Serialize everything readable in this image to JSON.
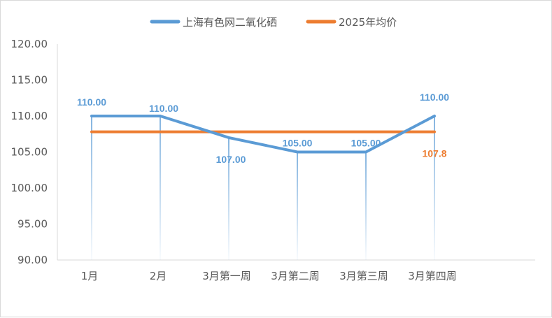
{
  "chart_data": {
    "type": "line",
    "categories": [
      "1月",
      "2月",
      "3月第一周",
      "3月第二周",
      "3月第三周",
      "3月第四周"
    ],
    "series": [
      {
        "name": "上海有色网二氧化硒",
        "values": [
          110.0,
          110.0,
          107.0,
          105.0,
          105.0,
          110.0
        ],
        "labels": [
          "110.00",
          "110.00",
          "107.00",
          "105.00",
          "105.00",
          "110.00"
        ],
        "color": "#5b9bd5"
      },
      {
        "name": "2025年均价",
        "values": [
          107.8,
          107.8,
          107.8,
          107.8,
          107.8,
          107.8
        ],
        "end_label": "107.8",
        "color": "#ed7d31"
      }
    ],
    "y_ticks": [
      "90.00",
      "95.00",
      "100.00",
      "105.00",
      "110.00",
      "115.00",
      "120.00"
    ],
    "ylim": [
      90,
      120
    ],
    "legend_position": "top-center",
    "grid": false,
    "drop_lines": true
  }
}
